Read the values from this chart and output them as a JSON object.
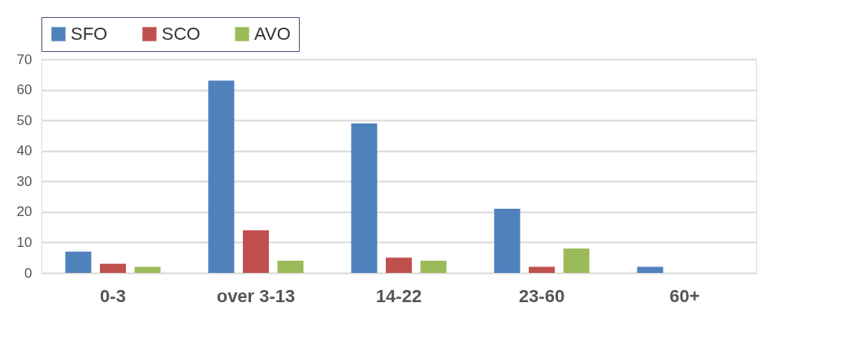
{
  "chart_data": {
    "type": "bar",
    "categories": [
      "0-3",
      "over 3-13",
      "14-22",
      "23-60",
      "60+"
    ],
    "series": [
      {
        "name": "SFO",
        "color": "#4f81bd",
        "values": [
          7,
          63,
          49,
          21,
          2
        ]
      },
      {
        "name": "SCO",
        "color": "#c0504d",
        "values": [
          3,
          14,
          5,
          2,
          0
        ]
      },
      {
        "name": "AVO",
        "color": "#9bbb59",
        "values": [
          2,
          4,
          4,
          8,
          0
        ]
      }
    ],
    "ylim": [
      0,
      70
    ],
    "yticks": [
      0,
      10,
      20,
      30,
      40,
      50,
      60,
      70
    ],
    "grid": "y",
    "legend": "top"
  }
}
